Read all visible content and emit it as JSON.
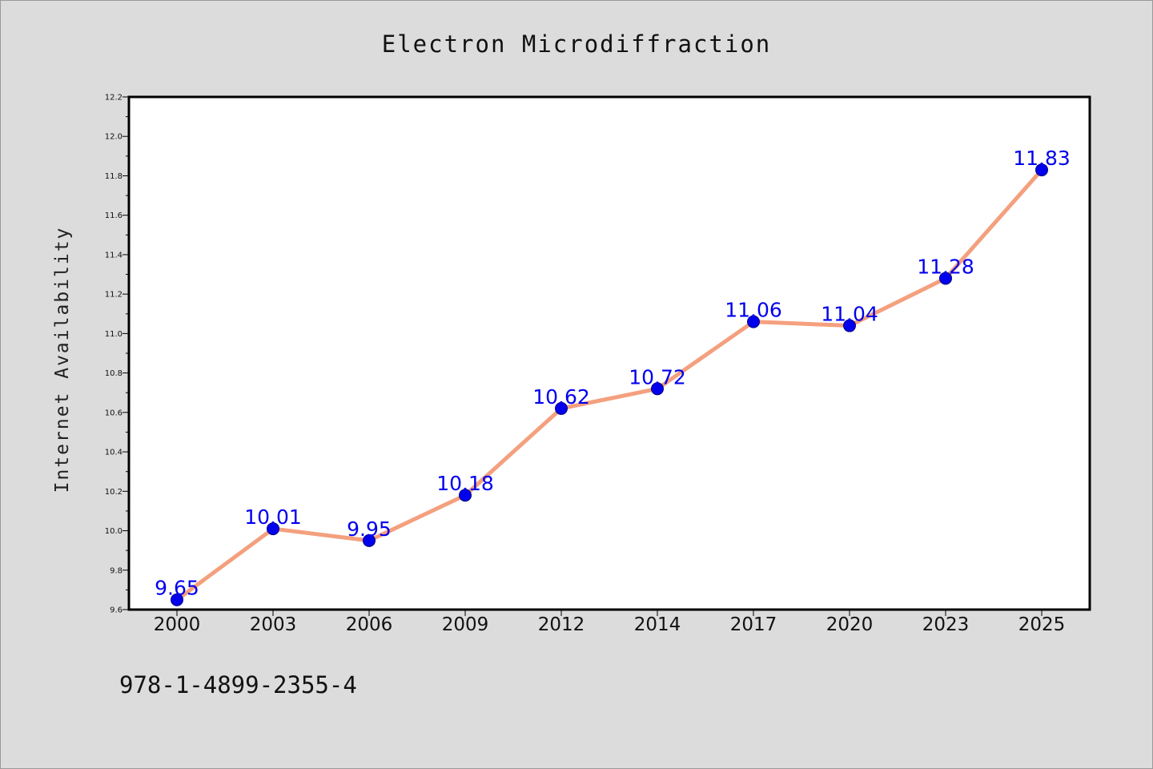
{
  "chart_data": {
    "type": "line",
    "title": "Electron Microdiffraction",
    "xlabel": "",
    "ylabel": "Internet Availability",
    "categories": [
      "2000",
      "2003",
      "2006",
      "2009",
      "2012",
      "2014",
      "2017",
      "2020",
      "2023",
      "2025"
    ],
    "series": [
      {
        "values": [
          9.65,
          10.01,
          9.95,
          10.18,
          10.62,
          10.72,
          11.06,
          11.04,
          11.28,
          11.83
        ],
        "labels": [
          "9.65",
          "10.01",
          "9.95",
          "10.18",
          "10.62",
          "10.72",
          "11.06",
          "11.04",
          "11.28",
          "11.83"
        ]
      }
    ],
    "ylim": [
      9.6,
      12.2
    ],
    "yticks": [
      "9.6",
      "9.8",
      "10.0",
      "10.2",
      "10.4",
      "10.6",
      "10.8",
      "11.0",
      "11.2",
      "11.4",
      "11.6",
      "11.8",
      "12.0",
      "12.2"
    ],
    "grid": false,
    "legend": "none",
    "colors": {
      "line": "#f4a07e",
      "marker": "#0000ee",
      "marker_edge": "#000080",
      "data_label": "#0000ee",
      "plot_background": "#ffffff",
      "figure_background": "#dcdcdc"
    }
  },
  "footer": {
    "isbn": "978-1-4899-2355-4"
  }
}
